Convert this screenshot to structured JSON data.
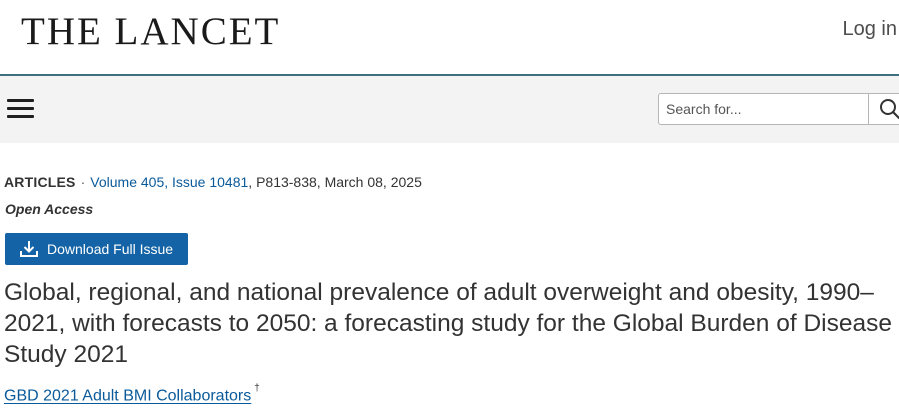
{
  "header": {
    "logo_text": "THE LANCET",
    "login_label": "Log in"
  },
  "toolbar": {
    "menu_icon": "hamburger-menu-icon",
    "search_placeholder": "Search for...",
    "search_icon": "search-icon"
  },
  "article": {
    "type": "ARTICLES",
    "separator": "·",
    "volume_issue": "Volume 405, Issue 10481",
    "pages_date": ", P813-838, March 08, 2025",
    "access": "Open Access",
    "download_label": "Download Full Issue",
    "download_icon": "download-icon",
    "title": "Global, regional, and national prevalence of adult overweight and obesity, 1990–2021, with forecasts to 2050: a forecasting study for the Global Burden of Disease Study 2021",
    "authors": "GBD 2021 Adult BMI Collaborators",
    "author_mark": "†"
  },
  "colors": {
    "divider": "#3f6f7e",
    "toolbar_bg": "#f3f3f3",
    "link": "#0a5a9a",
    "button_bg": "#1363a6"
  }
}
